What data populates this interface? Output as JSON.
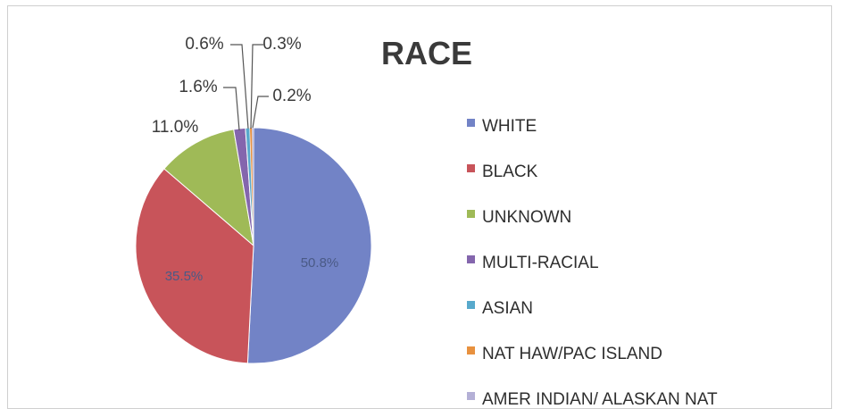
{
  "chart_data": {
    "type": "pie",
    "title": "RACE",
    "series": [
      {
        "name": "WHITE",
        "value": 50.8,
        "label": "50.8%",
        "color": "#7283c6"
      },
      {
        "name": "BLACK",
        "value": 35.5,
        "label": "35.5%",
        "color": "#c8545a"
      },
      {
        "name": "UNKNOWN",
        "value": 11.0,
        "label": "11.0%",
        "color": "#9fba57"
      },
      {
        "name": "MULTI-RACIAL",
        "value": 1.6,
        "label": "1.6%",
        "color": "#8466ad"
      },
      {
        "name": "ASIAN",
        "value": 0.6,
        "label": "0.6%",
        "color": "#58a9cc"
      },
      {
        "name": "NAT HAW/PAC ISLAND",
        "value": 0.3,
        "label": "0.3%",
        "color": "#e8913f"
      },
      {
        "name": "AMER INDIAN/ ALASKAN NAT",
        "value": 0.2,
        "label": "0.2%",
        "color": "#b4b0d6"
      }
    ],
    "legend": "right"
  }
}
